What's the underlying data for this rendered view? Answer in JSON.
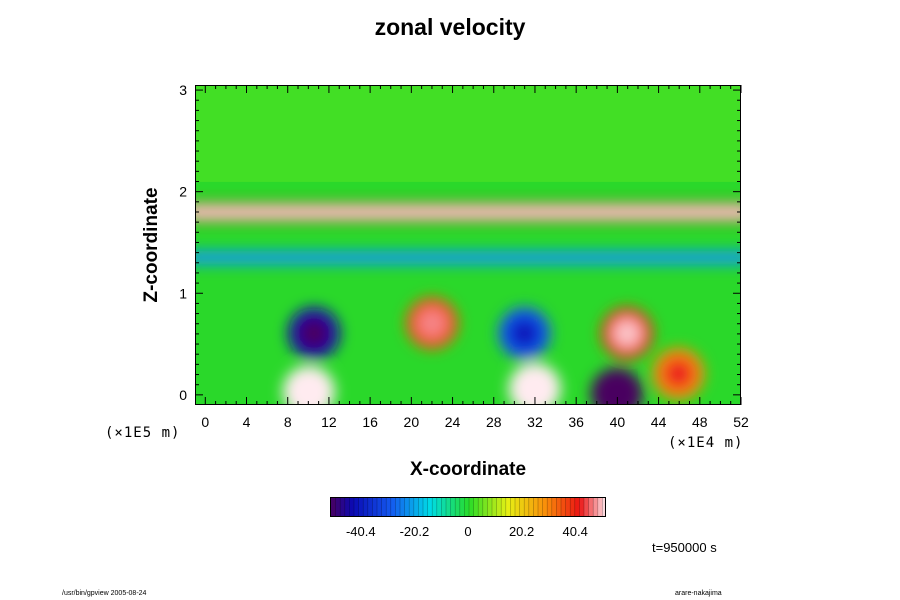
{
  "chart_data": {
    "type": "heatmap",
    "title": "zonal velocity",
    "xlabel": "X-coordinate",
    "ylabel": "Z-coordinate",
    "x_scale_note": "(×1E4 m)",
    "y_scale_note": "(×1E5 m)",
    "xlim": [
      -1,
      52
    ],
    "ylim": [
      -0.1,
      3.05
    ],
    "x_ticks": [
      "0",
      "4",
      "8",
      "12",
      "16",
      "20",
      "24",
      "28",
      "32",
      "36",
      "40",
      "44",
      "48",
      "52"
    ],
    "y_ticks": [
      "0",
      "1",
      "2",
      "3"
    ],
    "colorbar": {
      "range": [
        -52,
        52
      ],
      "tick_values": [
        -40.4,
        -20.2,
        0,
        20.2,
        40.4
      ],
      "tick_labels": [
        "-40.4",
        "-20.2",
        "0",
        "20.2",
        "40.4"
      ]
    },
    "features": [
      {
        "kind": "jet",
        "z": 1.8,
        "value": 40,
        "description": "strong eastward jet layer"
      },
      {
        "kind": "band",
        "z": 1.35,
        "value": -22
      },
      {
        "kind": "blob",
        "x": 10.5,
        "z": 0.6,
        "value": -45
      },
      {
        "kind": "blob",
        "x": 22,
        "z": 0.7,
        "value": 35
      },
      {
        "kind": "blob",
        "x": 31,
        "z": 0.6,
        "value": -30
      },
      {
        "kind": "blob",
        "x": 41,
        "z": 0.6,
        "value": 38
      },
      {
        "kind": "blob",
        "x": 10,
        "z": 0.02,
        "value": 55
      },
      {
        "kind": "blob",
        "x": 32,
        "z": 0.05,
        "value": 52
      },
      {
        "kind": "blob",
        "x": 40,
        "z": 0.0,
        "value": -52
      },
      {
        "kind": "blob",
        "x": 46,
        "z": 0.2,
        "value": 30
      }
    ]
  },
  "time_label": "t=950000 s",
  "footer_left": "/usr/bin/gpview 2005-08-24",
  "footer_right": "arare-nakajima"
}
